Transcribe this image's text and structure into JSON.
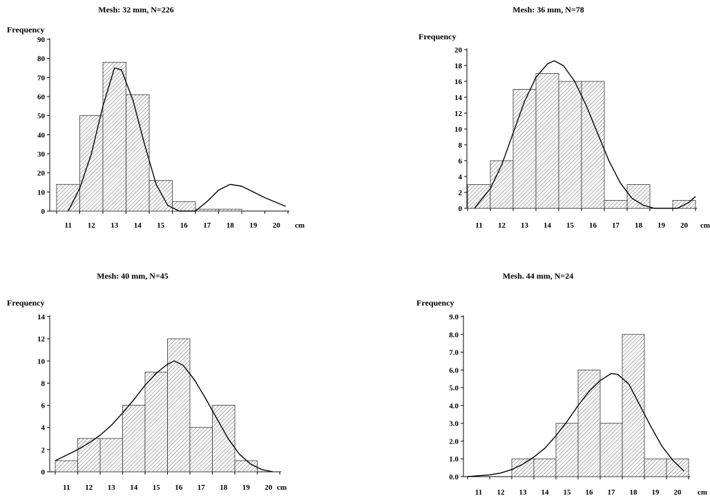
{
  "chart_data": [
    {
      "type": "bar",
      "title": "Mesh: 32 mm, N=226",
      "ylabel": "Frequency",
      "xunit": "cm",
      "categories": [
        "11",
        "12",
        "13",
        "14",
        "15",
        "16",
        "17",
        "18",
        "19",
        "20"
      ],
      "y_ticks": [
        "0",
        "10",
        "20",
        "30",
        "40",
        "50",
        "60",
        "70",
        "80",
        "90"
      ],
      "ylim": [
        0,
        90
      ],
      "series": [
        {
          "values": [
            14,
            50,
            78,
            61,
            16,
            5,
            1,
            1,
            0,
            0
          ]
        }
      ],
      "fit_curve": [
        [
          11,
          0
        ],
        [
          11.5,
          12
        ],
        [
          12,
          30
        ],
        [
          12.5,
          55
        ],
        [
          13,
          75
        ],
        [
          13.3,
          74
        ],
        [
          13.8,
          58
        ],
        [
          14.3,
          35
        ],
        [
          14.8,
          14
        ],
        [
          15.3,
          3
        ],
        [
          15.8,
          0
        ],
        [
          16.5,
          0
        ],
        [
          17,
          5
        ],
        [
          17.5,
          11
        ],
        [
          18,
          14
        ],
        [
          18.5,
          13
        ],
        [
          19,
          10
        ],
        [
          19.5,
          7
        ],
        [
          20,
          4.5
        ],
        [
          20.4,
          2.5
        ]
      ]
    },
    {
      "type": "bar",
      "title": "Mesh: 36 mm, N=78",
      "ylabel": "Frequency",
      "xunit": "cm",
      "categories": [
        "11",
        "12",
        "13",
        "14",
        "15",
        "16",
        "17",
        "18",
        "19",
        "20"
      ],
      "y_ticks": [
        "0",
        "2",
        "4",
        "6",
        "8",
        "10",
        "12",
        "14",
        "16",
        "18",
        "20"
      ],
      "ylim": [
        0,
        20
      ],
      "series": [
        {
          "values": [
            3,
            6,
            15,
            17,
            16,
            16,
            1,
            3,
            0,
            1
          ]
        }
      ],
      "fit_curve": [
        [
          10.8,
          0
        ],
        [
          11.5,
          2.5
        ],
        [
          12,
          5.5
        ],
        [
          12.5,
          9.5
        ],
        [
          13,
          13.5
        ],
        [
          13.5,
          16.5
        ],
        [
          14,
          18.2
        ],
        [
          14.3,
          18.6
        ],
        [
          14.7,
          18
        ],
        [
          15.2,
          16
        ],
        [
          15.7,
          13
        ],
        [
          16.2,
          9.5
        ],
        [
          16.7,
          6
        ],
        [
          17.2,
          3.2
        ],
        [
          17.7,
          1.3
        ],
        [
          18.2,
          0.4
        ],
        [
          18.7,
          0
        ],
        [
          19.7,
          0
        ],
        [
          20.2,
          0.7
        ],
        [
          20.5,
          1.5
        ]
      ]
    },
    {
      "type": "bar",
      "title": "Mesh: 40 mm, N=45",
      "ylabel": "Frequency",
      "xunit": "cm",
      "categories": [
        "11",
        "12",
        "13",
        "14",
        "15",
        "16",
        "17",
        "18",
        "19",
        "20"
      ],
      "y_ticks": [
        "0",
        "2",
        "4",
        "6",
        "8",
        "10",
        "12",
        "14"
      ],
      "ylim": [
        0,
        14
      ],
      "series": [
        {
          "values": [
            1,
            3,
            3,
            6,
            9,
            12,
            4,
            6,
            1,
            0
          ]
        }
      ],
      "fit_curve": [
        [
          10.5,
          1
        ],
        [
          11,
          1.5
        ],
        [
          11.5,
          2
        ],
        [
          12,
          2.6
        ],
        [
          12.5,
          3.3
        ],
        [
          13,
          4.2
        ],
        [
          13.5,
          5.3
        ],
        [
          14,
          6.5
        ],
        [
          14.5,
          7.8
        ],
        [
          15,
          8.9
        ],
        [
          15.5,
          9.7
        ],
        [
          15.8,
          10
        ],
        [
          16.2,
          9.6
        ],
        [
          16.7,
          8.3
        ],
        [
          17.2,
          6.6
        ],
        [
          17.7,
          4.8
        ],
        [
          18.2,
          3
        ],
        [
          18.7,
          1.6
        ],
        [
          19.2,
          0.7
        ],
        [
          19.7,
          0.2
        ],
        [
          20.2,
          0
        ]
      ]
    },
    {
      "type": "bar",
      "title": "Mesh. 44 mm, N=24",
      "ylabel": "Frequency",
      "xunit": "cm",
      "categories": [
        "11",
        "12",
        "13",
        "14",
        "15",
        "16",
        "17",
        "18",
        "19",
        "20"
      ],
      "y_ticks": [
        "0.0",
        "1.0",
        "2.0",
        "3.0",
        "4.0",
        "5.0",
        "6.0",
        "7.0",
        "8.0",
        "9.0"
      ],
      "ylim": [
        0,
        9
      ],
      "series": [
        {
          "values": [
            0,
            0,
            1,
            1,
            3,
            6,
            3,
            8,
            1,
            1
          ]
        }
      ],
      "fit_curve": [
        [
          10.5,
          0
        ],
        [
          11,
          0.05
        ],
        [
          11.5,
          0.1
        ],
        [
          12,
          0.2
        ],
        [
          12.5,
          0.4
        ],
        [
          13,
          0.7
        ],
        [
          13.5,
          1.1
        ],
        [
          14,
          1.6
        ],
        [
          14.5,
          2.3
        ],
        [
          15,
          3.1
        ],
        [
          15.5,
          4
        ],
        [
          16,
          4.8
        ],
        [
          16.5,
          5.4
        ],
        [
          17,
          5.8
        ],
        [
          17.3,
          5.75
        ],
        [
          17.8,
          5.2
        ],
        [
          18.3,
          4
        ],
        [
          18.8,
          2.8
        ],
        [
          19.3,
          1.7
        ],
        [
          19.8,
          0.9
        ],
        [
          20.3,
          0.3
        ]
      ]
    }
  ]
}
